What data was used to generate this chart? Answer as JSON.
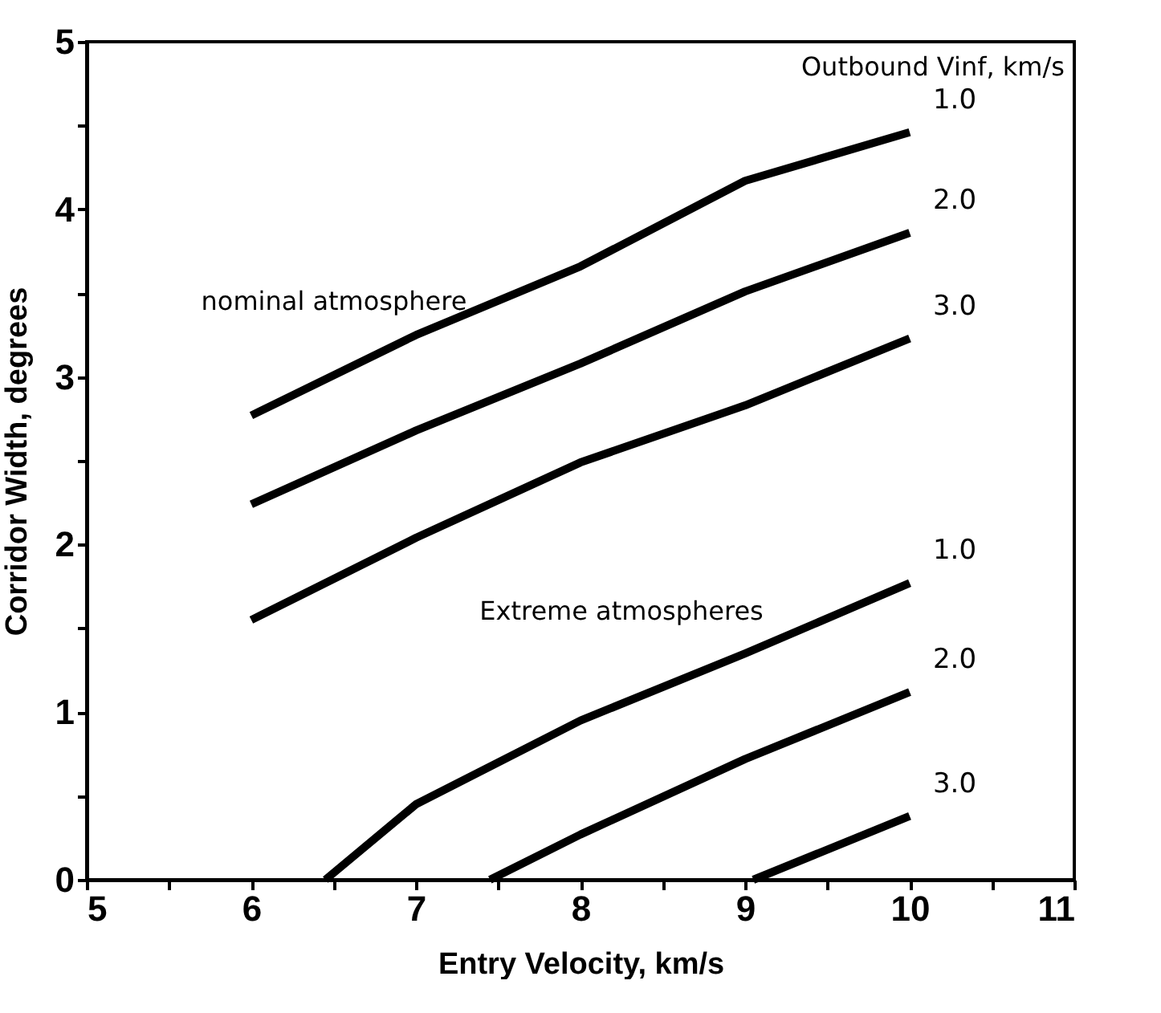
{
  "chart_data": {
    "type": "line",
    "xlabel": "Entry Velocity, km/s",
    "ylabel": "Corridor Width, degrees",
    "legend_title": "Outbound Vinf, km/s",
    "legend": false,
    "grid": false,
    "marker": "none",
    "line_style": "solid",
    "xlim": [
      5,
      11
    ],
    "ylim": [
      0,
      5
    ],
    "xticks": [
      5,
      {
        "value": 5.5,
        "label": null
      },
      6,
      {
        "value": 6.5,
        "label": null
      },
      7,
      {
        "value": 7.5,
        "label": null
      },
      8,
      {
        "value": 8.5,
        "label": null
      },
      9,
      {
        "value": 9.5,
        "label": null
      },
      10,
      {
        "value": 10.5,
        "label": null
      },
      11
    ],
    "yticks": [
      0,
      {
        "value": 0.5,
        "label": null
      },
      1,
      {
        "value": 1.5,
        "label": null
      },
      2,
      {
        "value": 2.5,
        "label": null
      },
      3,
      {
        "value": 3.5,
        "label": null
      },
      4,
      {
        "value": 4.5,
        "label": null
      },
      5
    ],
    "annotations": [
      "nominal atmosphere",
      "Extreme atmospheres"
    ],
    "series": [
      {
        "name": "1.0",
        "color": "#000000",
        "x": [
          6,
          7,
          8,
          9,
          10
        ],
        "values": [
          2.77,
          3.25,
          3.66,
          4.17,
          4.46
        ]
      },
      {
        "name": "2.0",
        "color": "#000000",
        "x": [
          6,
          7,
          8,
          9,
          10
        ],
        "values": [
          2.24,
          2.68,
          3.08,
          3.51,
          3.86
        ]
      },
      {
        "name": "3.0",
        "color": "#000000",
        "x": [
          6,
          7,
          8,
          9,
          10
        ],
        "values": [
          1.55,
          2.04,
          2.49,
          2.83,
          3.23
        ]
      },
      {
        "name": "1.0",
        "color": "#000000",
        "x": [
          6.45,
          7,
          8,
          9,
          10
        ],
        "values": [
          0,
          0.45,
          0.95,
          1.35,
          1.77
        ]
      },
      {
        "name": "2.0",
        "color": "#000000",
        "x": [
          7.45,
          8,
          9,
          10
        ],
        "values": [
          0,
          0.27,
          0.72,
          1.12
        ]
      },
      {
        "name": "3.0",
        "color": "#000000",
        "x": [
          9.05,
          10
        ],
        "values": [
          0,
          0.38
        ]
      }
    ]
  }
}
